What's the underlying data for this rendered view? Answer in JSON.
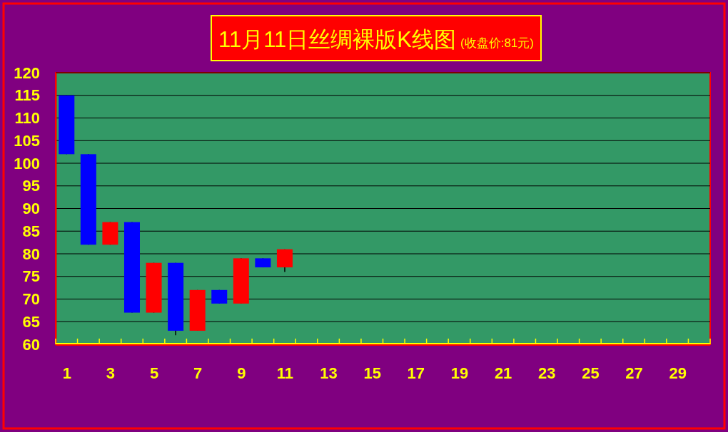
{
  "chart_data": {
    "type": "candlestick",
    "title": "11月11日丝绸裸版K线图",
    "subtitle": "(收盘价:81元)",
    "x": [
      1,
      2,
      3,
      4,
      5,
      6,
      7,
      8,
      9,
      10,
      11
    ],
    "ohlc": [
      [
        115,
        115,
        102,
        102
      ],
      [
        102,
        102,
        82,
        82
      ],
      [
        82,
        87,
        82,
        87
      ],
      [
        87,
        87,
        67,
        67
      ],
      [
        67,
        78,
        67,
        78
      ],
      [
        78,
        78,
        62,
        63
      ],
      [
        63,
        72,
        63,
        72
      ],
      [
        72,
        72,
        69,
        69
      ],
      [
        69,
        79,
        69,
        79
      ],
      [
        79,
        79,
        77,
        77
      ],
      [
        77,
        81,
        76,
        81
      ]
    ],
    "colors": [
      "#0000ff",
      "#0000ff",
      "#ff0000",
      "#0000ff",
      "#ff0000",
      "#0000ff",
      "#ff0000",
      "#0000ff",
      "#ff0000",
      "#0000ff",
      "#ff0000"
    ],
    "xlim": [
      0.5,
      30.5
    ],
    "xticks": [
      {
        "value": 0.5,
        "label": null
      },
      1,
      {
        "value": 1.5,
        "label": null
      },
      {
        "value": 2.5,
        "label": null
      },
      3,
      {
        "value": 3.5,
        "label": null
      },
      {
        "value": 4.5,
        "label": null
      },
      5,
      {
        "value": 5.5,
        "label": null
      },
      {
        "value": 6.5,
        "label": null
      },
      7,
      {
        "value": 7.5,
        "label": null
      },
      {
        "value": 8.5,
        "label": null
      },
      9,
      {
        "value": 9.5,
        "label": null
      },
      {
        "value": 10.5,
        "label": null
      },
      11,
      {
        "value": 11.5,
        "label": null
      },
      {
        "value": 12.5,
        "label": null
      },
      13,
      {
        "value": 13.5,
        "label": null
      },
      {
        "value": 14.5,
        "label": null
      },
      15,
      {
        "value": 15.5,
        "label": null
      },
      {
        "value": 16.5,
        "label": null
      },
      17,
      {
        "value": 17.5,
        "label": null
      },
      {
        "value": 18.5,
        "label": null
      },
      19,
      {
        "value": 19.5,
        "label": null
      },
      {
        "value": 20.5,
        "label": null
      },
      21,
      {
        "value": 21.5,
        "label": null
      },
      {
        "value": 22.5,
        "label": null
      },
      23,
      {
        "value": 23.5,
        "label": null
      },
      {
        "value": 24.5,
        "label": null
      },
      25,
      {
        "value": 25.5,
        "label": null
      },
      {
        "value": 26.5,
        "label": null
      },
      27,
      {
        "value": 27.5,
        "label": null
      },
      {
        "value": 28.5,
        "label": null
      },
      29,
      {
        "value": 29.5,
        "label": null
      },
      {
        "value": 30.5,
        "label": null
      }
    ],
    "ylim": [
      60,
      120
    ],
    "yticks": [
      60,
      65,
      70,
      75,
      80,
      85,
      90,
      95,
      100,
      105,
      110,
      115,
      120
    ],
    "grid": "y"
  }
}
